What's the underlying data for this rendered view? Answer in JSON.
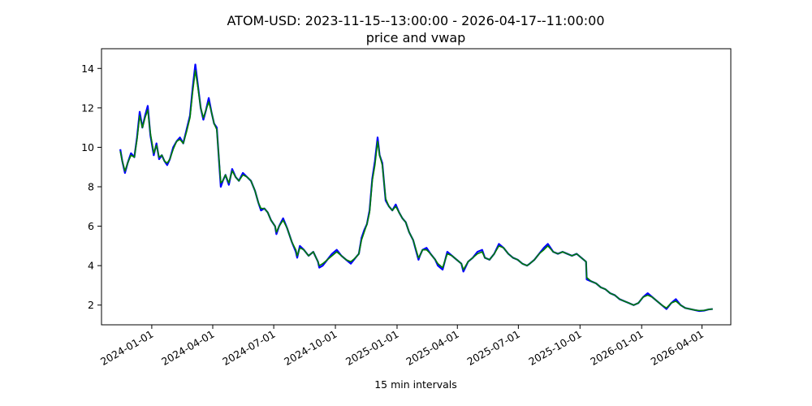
{
  "chart_data": {
    "type": "line",
    "title": "ATOM-USD: 2023-11-15--13:00:00 - 2026-04-17--11:00:00",
    "subtitle": "price and vwap",
    "xlabel": "15 min intervals",
    "ylabel": "",
    "xlim": [
      "2023-10-18",
      "2026-05-14"
    ],
    "ylim": [
      1.0,
      15.0
    ],
    "x_ticks": [
      "2024-01-01",
      "2024-04-01",
      "2024-07-01",
      "2024-10-01",
      "2025-01-01",
      "2025-04-01",
      "2025-07-01",
      "2025-10-01",
      "2026-01-01",
      "2026-04-01"
    ],
    "y_ticks": [
      2,
      4,
      6,
      8,
      10,
      12,
      14
    ],
    "grid": false,
    "colors": {
      "price": "#0000ff",
      "vwap": "#008000"
    },
    "series": [
      {
        "key": "price",
        "x": [
          "2023-11-15",
          "2023-11-18",
          "2023-11-22",
          "2023-11-26",
          "2023-12-01",
          "2023-12-06",
          "2023-12-10",
          "2023-12-14",
          "2023-12-18",
          "2023-12-22",
          "2023-12-26",
          "2023-12-30",
          "2024-01-04",
          "2024-01-08",
          "2024-01-12",
          "2024-01-16",
          "2024-01-20",
          "2024-01-24",
          "2024-01-28",
          "2024-02-02",
          "2024-02-07",
          "2024-02-12",
          "2024-02-17",
          "2024-02-22",
          "2024-02-27",
          "2024-03-02",
          "2024-03-06",
          "2024-03-10",
          "2024-03-14",
          "2024-03-18",
          "2024-03-22",
          "2024-03-26",
          "2024-03-30",
          "2024-04-03",
          "2024-04-07",
          "2024-04-11",
          "2024-04-13",
          "2024-04-16",
          "2024-04-20",
          "2024-04-25",
          "2024-04-30",
          "2024-05-05",
          "2024-05-10",
          "2024-05-16",
          "2024-05-22",
          "2024-05-28",
          "2024-06-03",
          "2024-06-08",
          "2024-06-12",
          "2024-06-17",
          "2024-06-22",
          "2024-06-27",
          "2024-07-03",
          "2024-07-05",
          "2024-07-09",
          "2024-07-15",
          "2024-07-21",
          "2024-07-28",
          "2024-08-03",
          "2024-08-05",
          "2024-08-09",
          "2024-08-15",
          "2024-08-22",
          "2024-08-29",
          "2024-09-05",
          "2024-09-07",
          "2024-09-12",
          "2024-09-19",
          "2024-09-26",
          "2024-10-03",
          "2024-10-10",
          "2024-10-17",
          "2024-10-24",
          "2024-10-31",
          "2024-11-05",
          "2024-11-09",
          "2024-11-13",
          "2024-11-17",
          "2024-11-21",
          "2024-11-25",
          "2024-11-29",
          "2024-12-03",
          "2024-12-06",
          "2024-12-10",
          "2024-12-15",
          "2024-12-20",
          "2024-12-25",
          "2024-12-30",
          "2025-01-04",
          "2025-01-09",
          "2025-01-14",
          "2025-01-19",
          "2025-01-25",
          "2025-02-02",
          "2025-02-04",
          "2025-02-08",
          "2025-02-14",
          "2025-02-20",
          "2025-02-27",
          "2025-03-03",
          "2025-03-10",
          "2025-03-17",
          "2025-03-24",
          "2025-03-31",
          "2025-04-07",
          "2025-04-10",
          "2025-04-17",
          "2025-04-24",
          "2025-05-01",
          "2025-05-08",
          "2025-05-12",
          "2025-05-19",
          "2025-05-26",
          "2025-06-02",
          "2025-06-09",
          "2025-06-16",
          "2025-06-23",
          "2025-06-30",
          "2025-07-07",
          "2025-07-14",
          "2025-07-18",
          "2025-07-25",
          "2025-08-01",
          "2025-08-08",
          "2025-08-14",
          "2025-08-22",
          "2025-08-29",
          "2025-09-05",
          "2025-09-12",
          "2025-09-19",
          "2025-09-26",
          "2025-10-03",
          "2025-10-10",
          "2025-10-11",
          "2025-10-18",
          "2025-10-25",
          "2025-11-01",
          "2025-11-08",
          "2025-11-15",
          "2025-11-22",
          "2025-11-29",
          "2025-12-06",
          "2025-12-13",
          "2025-12-20",
          "2025-12-27",
          "2026-01-03",
          "2026-01-10",
          "2026-01-17",
          "2026-01-24",
          "2026-01-31",
          "2026-02-07",
          "2026-02-14",
          "2026-02-21",
          "2026-02-28",
          "2026-03-07",
          "2026-03-14",
          "2026-03-21",
          "2026-03-28",
          "2026-04-04",
          "2026-04-11",
          "2026-04-17"
        ],
        "y": [
          9.9,
          9.3,
          8.7,
          9.2,
          9.7,
          9.5,
          10.5,
          11.8,
          11.0,
          11.6,
          12.1,
          10.6,
          9.6,
          10.2,
          9.4,
          9.6,
          9.3,
          9.1,
          9.4,
          10.0,
          10.3,
          10.5,
          10.2,
          10.9,
          11.6,
          13.0,
          14.2,
          13.1,
          12.0,
          11.4,
          11.9,
          12.5,
          11.8,
          11.2,
          11.0,
          9.0,
          8.0,
          8.3,
          8.6,
          8.1,
          8.9,
          8.5,
          8.3,
          8.7,
          8.5,
          8.3,
          7.8,
          7.2,
          6.8,
          6.9,
          6.7,
          6.3,
          6.0,
          5.6,
          6.0,
          6.4,
          5.9,
          5.2,
          4.7,
          4.4,
          5.0,
          4.8,
          4.5,
          4.7,
          4.2,
          3.9,
          4.0,
          4.3,
          4.6,
          4.8,
          4.5,
          4.3,
          4.1,
          4.4,
          4.6,
          5.4,
          5.8,
          6.1,
          6.8,
          8.4,
          9.3,
          10.5,
          9.6,
          9.2,
          7.3,
          7.0,
          6.8,
          7.1,
          6.7,
          6.4,
          6.2,
          5.7,
          5.3,
          4.3,
          4.5,
          4.8,
          4.9,
          4.6,
          4.3,
          4.0,
          3.8,
          4.7,
          4.5,
          4.3,
          4.1,
          3.7,
          4.2,
          4.4,
          4.7,
          4.8,
          4.4,
          4.3,
          4.6,
          5.1,
          4.9,
          4.6,
          4.4,
          4.3,
          4.1,
          4.0,
          4.1,
          4.3,
          4.6,
          4.9,
          5.1,
          4.7,
          4.6,
          4.7,
          4.6,
          4.5,
          4.6,
          4.4,
          4.2,
          3.3,
          3.2,
          3.1,
          2.9,
          2.8,
          2.6,
          2.5,
          2.3,
          2.2,
          2.1,
          2.0,
          2.1,
          2.4,
          2.6,
          2.4,
          2.2,
          2.0,
          1.8,
          2.1,
          2.3,
          2.0,
          1.85,
          1.8,
          1.75,
          1.7,
          1.72,
          1.78,
          1.8
        ]
      },
      {
        "key": "vwap",
        "x": [
          "2023-11-15",
          "2023-11-18",
          "2023-11-22",
          "2023-11-26",
          "2023-12-01",
          "2023-12-06",
          "2023-12-10",
          "2023-12-14",
          "2023-12-18",
          "2023-12-22",
          "2023-12-26",
          "2023-12-30",
          "2024-01-04",
          "2024-01-08",
          "2024-01-12",
          "2024-01-16",
          "2024-01-20",
          "2024-01-24",
          "2024-01-28",
          "2024-02-02",
          "2024-02-07",
          "2024-02-12",
          "2024-02-17",
          "2024-02-22",
          "2024-02-27",
          "2024-03-02",
          "2024-03-06",
          "2024-03-10",
          "2024-03-14",
          "2024-03-18",
          "2024-03-22",
          "2024-03-26",
          "2024-03-30",
          "2024-04-03",
          "2024-04-07",
          "2024-04-11",
          "2024-04-13",
          "2024-04-16",
          "2024-04-20",
          "2024-04-25",
          "2024-04-30",
          "2024-05-05",
          "2024-05-10",
          "2024-05-16",
          "2024-05-22",
          "2024-05-28",
          "2024-06-03",
          "2024-06-08",
          "2024-06-12",
          "2024-06-17",
          "2024-06-22",
          "2024-06-27",
          "2024-07-03",
          "2024-07-05",
          "2024-07-09",
          "2024-07-15",
          "2024-07-21",
          "2024-07-28",
          "2024-08-03",
          "2024-08-05",
          "2024-08-09",
          "2024-08-15",
          "2024-08-22",
          "2024-08-29",
          "2024-09-05",
          "2024-09-07",
          "2024-09-12",
          "2024-09-19",
          "2024-09-26",
          "2024-10-03",
          "2024-10-10",
          "2024-10-17",
          "2024-10-24",
          "2024-10-31",
          "2024-11-05",
          "2024-11-09",
          "2024-11-13",
          "2024-11-17",
          "2024-11-21",
          "2024-11-25",
          "2024-11-29",
          "2024-12-03",
          "2024-12-06",
          "2024-12-10",
          "2024-12-15",
          "2024-12-20",
          "2024-12-25",
          "2024-12-30",
          "2025-01-04",
          "2025-01-09",
          "2025-01-14",
          "2025-01-19",
          "2025-01-25",
          "2025-02-02",
          "2025-02-04",
          "2025-02-08",
          "2025-02-14",
          "2025-02-20",
          "2025-02-27",
          "2025-03-03",
          "2025-03-10",
          "2025-03-17",
          "2025-03-24",
          "2025-03-31",
          "2025-04-07",
          "2025-04-10",
          "2025-04-17",
          "2025-04-24",
          "2025-05-01",
          "2025-05-08",
          "2025-05-12",
          "2025-05-19",
          "2025-05-26",
          "2025-06-02",
          "2025-06-09",
          "2025-06-16",
          "2025-06-23",
          "2025-06-30",
          "2025-07-07",
          "2025-07-14",
          "2025-07-18",
          "2025-07-25",
          "2025-08-01",
          "2025-08-08",
          "2025-08-14",
          "2025-08-22",
          "2025-08-29",
          "2025-09-05",
          "2025-09-12",
          "2025-09-19",
          "2025-09-26",
          "2025-10-03",
          "2025-10-10",
          "2025-10-11",
          "2025-10-18",
          "2025-10-25",
          "2025-11-01",
          "2025-11-08",
          "2025-11-15",
          "2025-11-22",
          "2025-11-29",
          "2025-12-06",
          "2025-12-13",
          "2025-12-20",
          "2025-12-27",
          "2026-01-03",
          "2026-01-10",
          "2026-01-17",
          "2026-01-24",
          "2026-01-31",
          "2026-02-07",
          "2026-02-14",
          "2026-02-21",
          "2026-02-28",
          "2026-03-07",
          "2026-03-14",
          "2026-03-21",
          "2026-03-28",
          "2026-04-04",
          "2026-04-11",
          "2026-04-17"
        ],
        "y": [
          9.8,
          9.3,
          8.8,
          9.2,
          9.6,
          9.5,
          10.4,
          11.6,
          11.0,
          11.5,
          11.9,
          10.7,
          9.7,
          10.1,
          9.5,
          9.6,
          9.3,
          9.2,
          9.4,
          9.9,
          10.3,
          10.4,
          10.2,
          10.8,
          11.5,
          12.8,
          13.9,
          13.0,
          12.0,
          11.5,
          11.9,
          12.3,
          11.8,
          11.2,
          10.9,
          9.1,
          8.2,
          8.3,
          8.6,
          8.2,
          8.8,
          8.5,
          8.3,
          8.6,
          8.5,
          8.3,
          7.8,
          7.2,
          6.9,
          6.9,
          6.7,
          6.3,
          6.0,
          5.7,
          6.0,
          6.3,
          5.9,
          5.2,
          4.8,
          4.5,
          4.9,
          4.8,
          4.5,
          4.7,
          4.2,
          4.0,
          4.1,
          4.3,
          4.5,
          4.7,
          4.5,
          4.3,
          4.2,
          4.4,
          4.6,
          5.3,
          5.7,
          6.1,
          6.7,
          8.3,
          9.1,
          10.3,
          9.6,
          9.1,
          7.4,
          7.0,
          6.8,
          7.0,
          6.7,
          6.4,
          6.2,
          5.7,
          5.3,
          4.4,
          4.5,
          4.8,
          4.8,
          4.6,
          4.3,
          4.1,
          3.9,
          4.6,
          4.5,
          4.3,
          4.1,
          3.8,
          4.2,
          4.4,
          4.6,
          4.7,
          4.4,
          4.3,
          4.6,
          5.0,
          4.9,
          4.6,
          4.4,
          4.3,
          4.1,
          4.0,
          4.1,
          4.3,
          4.6,
          4.8,
          5.0,
          4.7,
          4.6,
          4.7,
          4.6,
          4.5,
          4.6,
          4.4,
          4.2,
          3.4,
          3.2,
          3.1,
          2.9,
          2.8,
          2.6,
          2.5,
          2.3,
          2.2,
          2.1,
          2.0,
          2.1,
          2.4,
          2.5,
          2.4,
          2.2,
          2.0,
          1.85,
          2.1,
          2.2,
          2.0,
          1.85,
          1.8,
          1.75,
          1.72,
          1.73,
          1.78,
          1.8
        ]
      }
    ]
  }
}
